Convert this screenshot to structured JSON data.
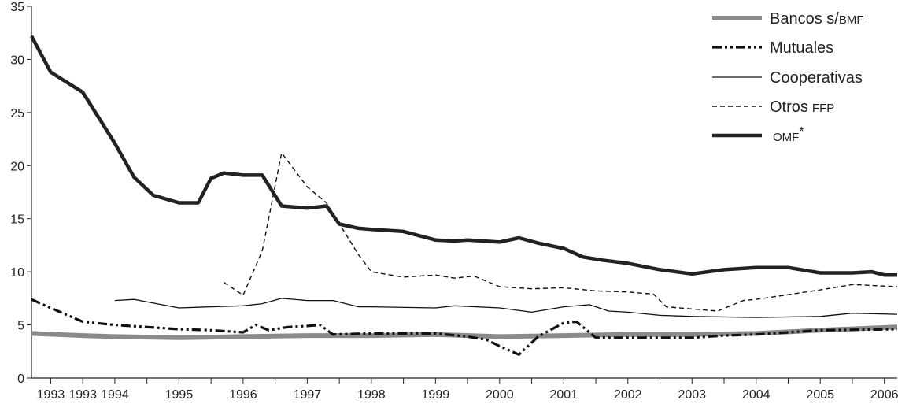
{
  "chart_data": {
    "type": "line",
    "title": "",
    "xlabel": "",
    "ylabel": "",
    "ylim": [
      0,
      35
    ],
    "yticks": [
      0,
      5,
      10,
      15,
      20,
      25,
      30,
      35
    ],
    "x_tick_labels": [
      "1993",
      "1993",
      "1994",
      "1995",
      "1996",
      "1997",
      "1998",
      "1999",
      "2000",
      "2001",
      "2002",
      "2003",
      "2004",
      "2005",
      "2006"
    ],
    "x_tick_positions": [
      1993.0,
      1993.5,
      1994.0,
      1995.0,
      1996.0,
      1997.0,
      1998.0,
      1999.0,
      2000.0,
      2001.0,
      2002.0,
      2003.0,
      2004.0,
      2005.0,
      2006.0
    ],
    "xlim": [
      1992.7,
      2006.2
    ],
    "grid": false,
    "legend_position": "top-right",
    "series": [
      {
        "name": "Bancos s/",
        "name_suffix": "BMF",
        "color": "#8a8a8a",
        "style": "thick-gray",
        "x": [
          1992.7,
          1993.5,
          1994.0,
          1995.0,
          1996.0,
          1997.0,
          1998.0,
          1999.0,
          2000.0,
          2001.0,
          2002.0,
          2003.0,
          2004.0,
          2005.0,
          2006.2
        ],
        "y": [
          4.2,
          4.0,
          3.9,
          3.8,
          3.9,
          4.0,
          4.0,
          4.1,
          3.9,
          4.0,
          4.1,
          4.1,
          4.2,
          4.5,
          4.8
        ]
      },
      {
        "name": "Mutuales",
        "name_suffix": "",
        "color": "#111111",
        "style": "dash-dot",
        "x": [
          1992.7,
          1993.0,
          1993.5,
          1994.0,
          1995.0,
          1995.5,
          1996.0,
          1996.2,
          1996.4,
          1996.7,
          1997.0,
          1997.2,
          1997.4,
          1998.0,
          1999.0,
          1999.5,
          1999.8,
          2000.0,
          2000.3,
          2000.6,
          2001.0,
          2001.2,
          2001.5,
          2002.0,
          2003.0,
          2003.5,
          2004.0,
          2005.0,
          2006.2
        ],
        "y": [
          7.4,
          6.6,
          5.3,
          5.0,
          4.6,
          4.5,
          4.3,
          5.0,
          4.5,
          4.8,
          4.9,
          5.0,
          4.1,
          4.2,
          4.2,
          3.9,
          3.6,
          3.0,
          2.2,
          3.9,
          5.2,
          5.3,
          3.8,
          3.8,
          3.8,
          4.0,
          4.1,
          4.5,
          4.6
        ]
      },
      {
        "name": "Cooperativas",
        "name_suffix": "",
        "color": "#111111",
        "style": "thin",
        "x": [
          1994.0,
          1994.3,
          1995.0,
          1995.5,
          1996.0,
          1996.3,
          1996.6,
          1997.0,
          1997.4,
          1997.8,
          1998.0,
          1999.0,
          1999.3,
          2000.0,
          2000.5,
          2001.0,
          2001.4,
          2001.7,
          2002.0,
          2002.5,
          2003.0,
          2004.0,
          2005.0,
          2005.5,
          2006.2
        ],
        "y": [
          7.3,
          7.4,
          6.6,
          6.7,
          6.8,
          7.0,
          7.5,
          7.3,
          7.3,
          6.7,
          6.7,
          6.6,
          6.8,
          6.6,
          6.2,
          6.7,
          6.9,
          6.3,
          6.2,
          5.9,
          5.8,
          5.7,
          5.8,
          6.1,
          6.0
        ]
      },
      {
        "name": "Otros",
        "name_suffix": "FFP",
        "color": "#111111",
        "style": "dashed",
        "x": [
          1995.7,
          1996.0,
          1996.3,
          1996.6,
          1997.0,
          1997.3,
          1997.8,
          1998.0,
          1998.5,
          1999.0,
          1999.3,
          1999.6,
          2000.0,
          2000.5,
          2001.0,
          2001.5,
          2002.0,
          2002.4,
          2002.6,
          2003.0,
          2003.4,
          2003.8,
          2004.0,
          2005.0,
          2005.5,
          2006.2
        ],
        "y": [
          9.0,
          7.8,
          12.0,
          21.2,
          18.0,
          16.5,
          11.6,
          10.0,
          9.5,
          9.7,
          9.4,
          9.6,
          8.6,
          8.4,
          8.5,
          8.2,
          8.1,
          7.9,
          6.7,
          6.5,
          6.3,
          7.3,
          7.4,
          8.3,
          8.8,
          8.6
        ]
      },
      {
        "name": "OMF",
        "name_suffix": "*",
        "color": "#222222",
        "style": "thick-black",
        "x": [
          1992.7,
          1993.0,
          1993.5,
          1994.0,
          1994.3,
          1994.6,
          1995.0,
          1995.3,
          1995.5,
          1995.7,
          1996.0,
          1996.3,
          1996.6,
          1997.0,
          1997.3,
          1997.5,
          1997.8,
          1998.0,
          1998.5,
          1999.0,
          1999.3,
          1999.5,
          2000.0,
          2000.3,
          2000.6,
          2001.0,
          2001.3,
          2001.6,
          2002.0,
          2002.5,
          2003.0,
          2003.5,
          2004.0,
          2004.5,
          2005.0,
          2005.5,
          2005.8,
          2006.0,
          2006.2
        ],
        "y": [
          32.2,
          28.8,
          26.9,
          22.1,
          18.9,
          17.2,
          16.5,
          16.5,
          18.8,
          19.3,
          19.1,
          19.1,
          16.2,
          16.0,
          16.2,
          14.5,
          14.1,
          14.0,
          13.8,
          13.0,
          12.9,
          13.0,
          12.8,
          13.2,
          12.7,
          12.2,
          11.4,
          11.1,
          10.8,
          10.2,
          9.8,
          10.2,
          10.4,
          10.4,
          9.9,
          9.9,
          10.0,
          9.7,
          9.7
        ]
      }
    ]
  }
}
